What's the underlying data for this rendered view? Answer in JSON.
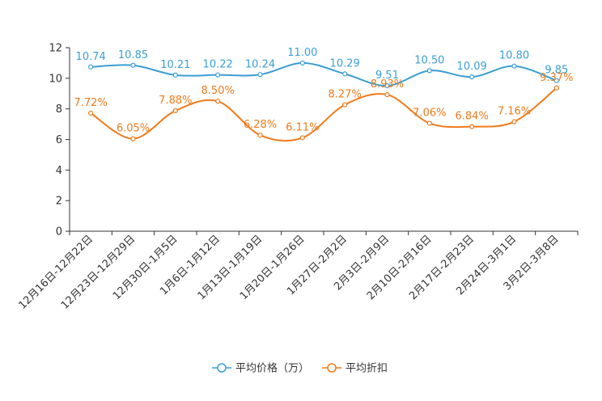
{
  "chart_data": {
    "type": "line",
    "categories": [
      "12月16日-12月22日",
      "12月23日-12月29日",
      "12月30日-1月5日",
      "1月6日-1月12日",
      "1月13日-1月19日",
      "1月20日-1月26日",
      "1月27日-2月2日",
      "2月3日-2月9日",
      "2月10日-2月16日",
      "2月17日-2月23日",
      "2月24日-3月1日",
      "3月2日-3月8日"
    ],
    "series": [
      {
        "name": "平均价格（万）",
        "color": "#3a9ed4",
        "values": [
          10.74,
          10.85,
          10.21,
          10.22,
          10.24,
          11.0,
          10.29,
          9.51,
          10.5,
          10.09,
          10.8,
          9.85
        ],
        "labels": [
          "10.74",
          "10.85",
          "10.21",
          "10.22",
          "10.24",
          "11.00",
          "10.29",
          "9.51",
          "10.50",
          "10.09",
          "10.80",
          "9.85"
        ]
      },
      {
        "name": "平均折扣",
        "color": "#f07a1a",
        "values": [
          7.72,
          6.05,
          7.88,
          8.5,
          6.28,
          6.11,
          8.27,
          8.93,
          7.06,
          6.84,
          7.16,
          9.37
        ],
        "labels": [
          "7.72%",
          "6.05%",
          "7.88%",
          "8.50%",
          "6.28%",
          "6.11%",
          "8.27%",
          "8.93%",
          "7.06%",
          "6.84%",
          "7.16%",
          "9.37%"
        ]
      }
    ],
    "ylim": [
      0,
      12
    ],
    "yticks": [
      "0",
      "2",
      "4",
      "6",
      "8",
      "10",
      "12"
    ],
    "legend": "bottom-center",
    "grid": false,
    "title": "",
    "xlabel": "",
    "ylabel": ""
  }
}
